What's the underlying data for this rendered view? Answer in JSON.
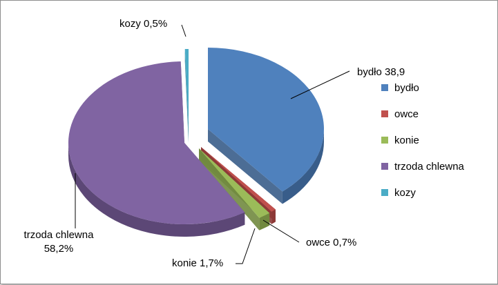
{
  "chart_data": {
    "type": "pie",
    "style": "3d-exploded",
    "categories": [
      "bydło",
      "owce",
      "konie",
      "trzoda chlewna",
      "kozy"
    ],
    "values": [
      38.9,
      0.7,
      1.7,
      58.2,
      0.5
    ],
    "data_labels": [
      "bydło 38,9",
      "owce 0,7%",
      "konie 1,7%",
      "trzoda chlewna 58,2%",
      "kozy 0,5%"
    ],
    "colors": [
      "#4f81bd",
      "#c0504d",
      "#9bbb59",
      "#8064a2",
      "#4bacc6"
    ],
    "side_colors": [
      "#385d8a",
      "#8c3836",
      "#71893f",
      "#5c4776",
      "#31859c"
    ],
    "legend_position": "right"
  }
}
